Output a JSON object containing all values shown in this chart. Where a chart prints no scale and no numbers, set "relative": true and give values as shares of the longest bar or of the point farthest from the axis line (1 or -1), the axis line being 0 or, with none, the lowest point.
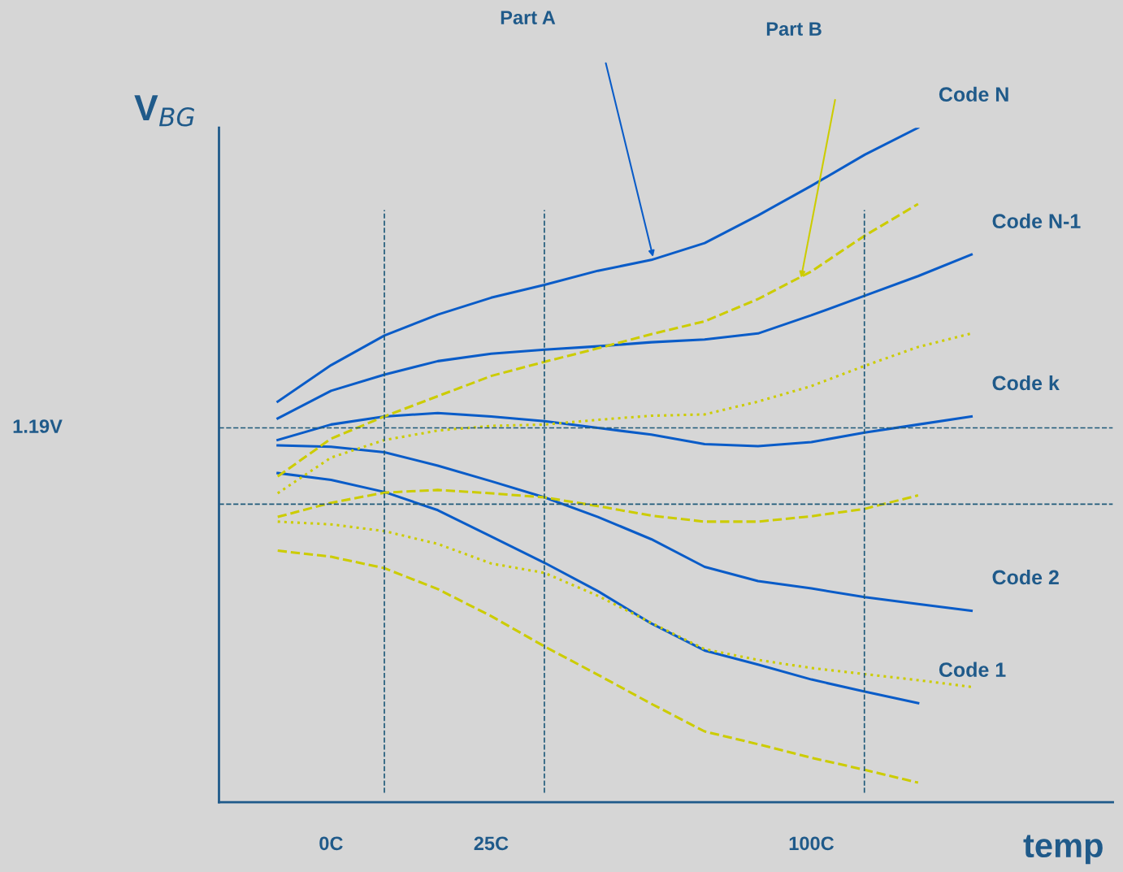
{
  "chart_data": {
    "type": "line",
    "relative": true,
    "xlabel": "temp",
    "ylabel": "V$_{BG}$",
    "categories": [
      null,
      null,
      "0C",
      null,
      null,
      "25C",
      null,
      null,
      null,
      null,
      null,
      "100C",
      null,
      null,
      null,
      null,
      null
    ],
    "legend": false,
    "grid": "x",
    "marker": "none",
    "ref_lines": [
      {
        "axis": "y",
        "value": 0.555,
        "label": "1.19V",
        "color": "#1f5a7a",
        "line_style": "dashed"
      },
      {
        "axis": "y",
        "value": 0.442,
        "color": "#1f5a7a",
        "line_style": "dashed"
      }
    ],
    "annotations": [
      "Part A",
      "Part B"
    ],
    "series": [
      {
        "name": "Code N",
        "color": "#0a5cc8",
        "line_style": "solid",
        "values": [
          null,
          0.594,
          0.648,
          0.692,
          0.723,
          0.748,
          0.767,
          0.788,
          0.804,
          0.829,
          0.87,
          0.914,
          0.96,
          1.0,
          null,
          null,
          null
        ]
      },
      {
        "name": "Code N-1",
        "color": "#0a5cc8",
        "line_style": "solid",
        "values": [
          null,
          0.569,
          0.61,
          0.634,
          0.654,
          0.665,
          0.671,
          0.676,
          0.682,
          0.686,
          0.695,
          0.722,
          0.751,
          0.78,
          0.812,
          null,
          null
        ]
      },
      {
        "name": "Code k",
        "color": "#0a5cc8",
        "line_style": "solid",
        "values": [
          null,
          0.537,
          0.56,
          0.572,
          0.577,
          0.572,
          0.565,
          0.555,
          0.545,
          0.531,
          0.528,
          0.534,
          0.548,
          0.56,
          0.572,
          null,
          null
        ]
      },
      {
        "name": "Code 2",
        "color": "#0a5cc8",
        "line_style": "solid",
        "values": [
          null,
          0.529,
          0.527,
          0.519,
          0.499,
          0.476,
          0.452,
          0.423,
          0.39,
          0.349,
          0.328,
          0.317,
          0.304,
          0.294,
          0.284,
          null,
          null
        ]
      },
      {
        "name": "Code 1",
        "color": "#0a5cc8",
        "line_style": "solid",
        "values": [
          null,
          0.488,
          0.478,
          0.46,
          0.433,
          0.394,
          0.355,
          0.313,
          0.265,
          0.225,
          0.204,
          0.182,
          0.164,
          0.147,
          null,
          null,
          null
        ]
      },
      {
        "color": "#cccc00",
        "line_style": "dashed",
        "values": [
          null,
          0.423,
          0.444,
          0.459,
          0.463,
          0.458,
          0.452,
          0.439,
          0.425,
          0.416,
          0.416,
          0.424,
          0.435,
          0.455,
          null,
          null,
          null
        ]
      },
      {
        "color": "#cccc00",
        "line_style": "dashed",
        "values": [
          null,
          0.483,
          0.539,
          0.572,
          0.602,
          0.632,
          0.653,
          0.673,
          0.694,
          0.713,
          0.746,
          0.787,
          0.84,
          0.887,
          null,
          null,
          null
        ]
      },
      {
        "color": "#cccc00",
        "line_style": "dotted",
        "values": [
          null,
          0.458,
          0.511,
          0.537,
          0.551,
          0.558,
          0.56,
          0.567,
          0.573,
          0.575,
          0.594,
          0.617,
          0.647,
          0.675,
          0.695,
          null,
          null
        ]
      },
      {
        "color": "#cccc00",
        "line_style": "dotted",
        "values": [
          null,
          0.416,
          0.412,
          0.402,
          0.383,
          0.354,
          0.34,
          0.306,
          0.266,
          0.227,
          0.211,
          0.199,
          0.19,
          0.181,
          0.171,
          null,
          null
        ]
      },
      {
        "color": "#cccc00",
        "line_style": "dashed",
        "values": [
          null,
          0.373,
          0.364,
          0.347,
          0.316,
          0.276,
          0.231,
          0.189,
          0.146,
          0.105,
          0.086,
          0.066,
          0.048,
          0.029,
          null,
          null,
          null
        ]
      }
    ]
  }
}
